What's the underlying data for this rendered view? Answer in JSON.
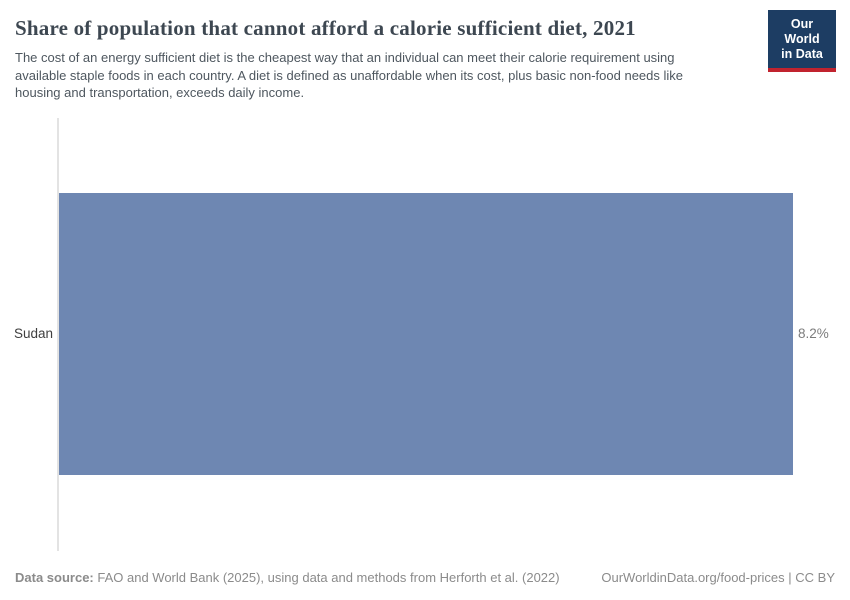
{
  "header": {
    "title": "Share of population that cannot afford a calorie sufficient diet, 2021",
    "subtitle": "The cost of an energy sufficient diet is the cheapest way that an individual can meet their calorie requirement using available staple foods in each country. A diet is defined as unaffordable when its cost, plus basic non-food needs like housing and transportation, exceeds daily income.",
    "logo": {
      "line1": "Our World",
      "line2": "in Data"
    }
  },
  "chart_data": {
    "type": "bar",
    "orientation": "horizontal",
    "title": "Share of population that cannot afford a calorie sufficient diet, 2021",
    "categories": [
      "Sudan"
    ],
    "values": [
      8.2
    ],
    "value_labels": [
      "8.2%"
    ],
    "xlabel": "",
    "ylabel": "",
    "xlim": [
      0,
      8.2
    ],
    "grid": false,
    "legend": "none"
  },
  "footer": {
    "datasource_label": "Data source:",
    "datasource_text": " FAO and World Bank (2025), using data and methods from Herforth et al. (2022)",
    "link_text": "OurWorldinData.org/food-prices | CC BY"
  },
  "colors": {
    "bar": "#6e87b2",
    "logo_bg": "#1d3d63",
    "logo_stripe": "#c1232e",
    "axis_line": "#e3e3e3"
  }
}
